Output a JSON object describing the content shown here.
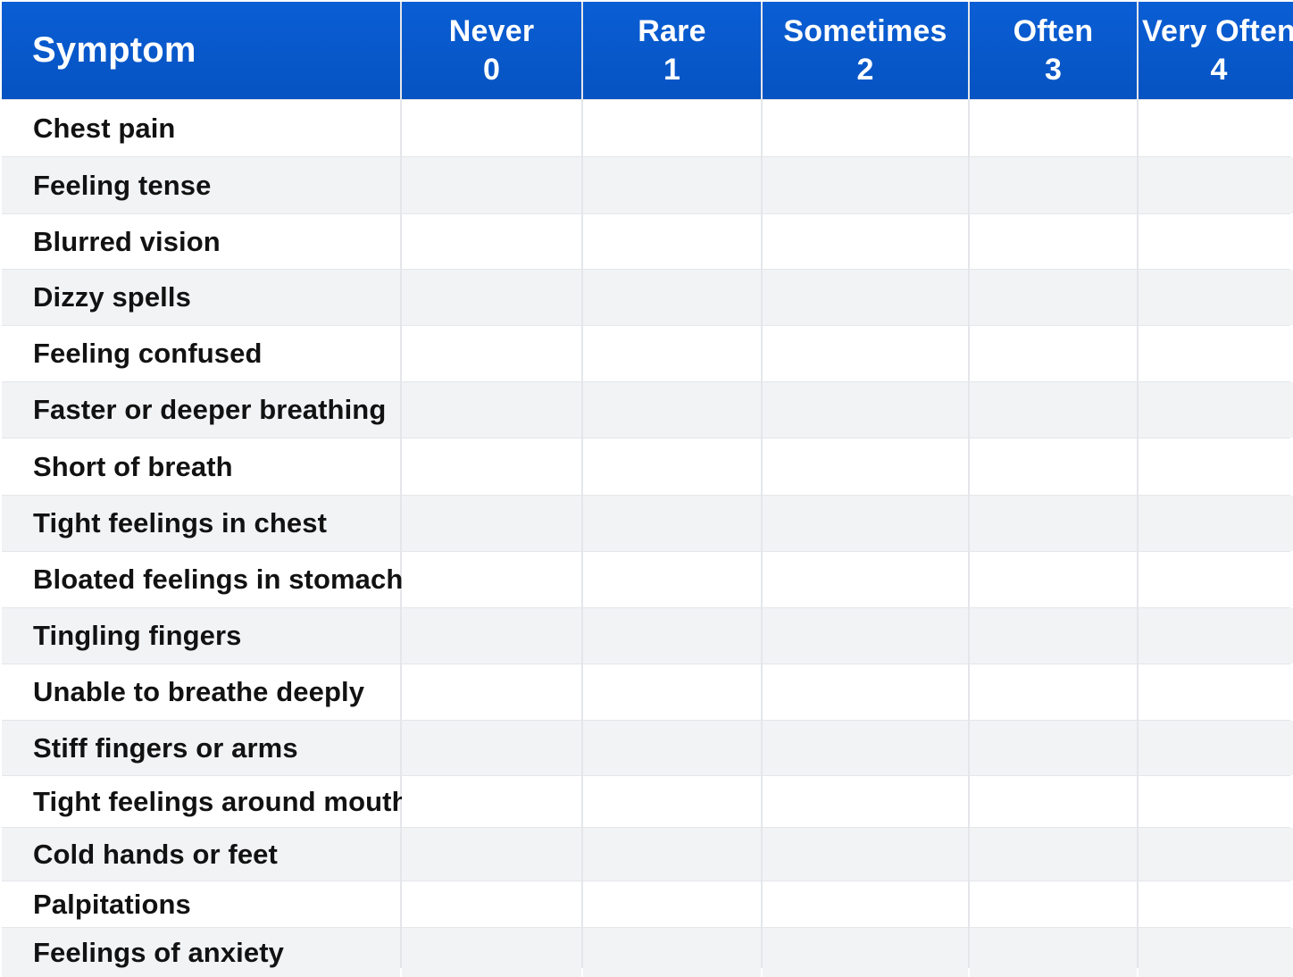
{
  "table": {
    "header": {
      "symptom": "Symptom",
      "columns": [
        {
          "label": "Never",
          "score": "0"
        },
        {
          "label": "Rare",
          "score": "1"
        },
        {
          "label": "Sometimes",
          "score": "2"
        },
        {
          "label": "Often",
          "score": "3"
        },
        {
          "label": "Very Often",
          "score": "4"
        }
      ]
    },
    "rows": [
      "Chest pain",
      "Feeling tense",
      "Blurred vision",
      "Dizzy spells",
      "Feeling confused",
      "Faster or deeper breathing",
      "Short of breath",
      "Tight feelings in chest",
      "Bloated feelings in stomach",
      "Tingling fingers",
      "Unable to breathe deeply",
      "Stiff fingers or arms",
      "Tight feelings around mouth",
      "Cold hands or feet",
      "Palpitations",
      "Feelings of anxiety"
    ]
  },
  "colors": {
    "header_background": "#0a5ed4",
    "header_text": "#ffffff",
    "row_alt_background": "#f2f3f5",
    "row_background": "#ffffff",
    "grid_line": "#e4e6ea"
  }
}
